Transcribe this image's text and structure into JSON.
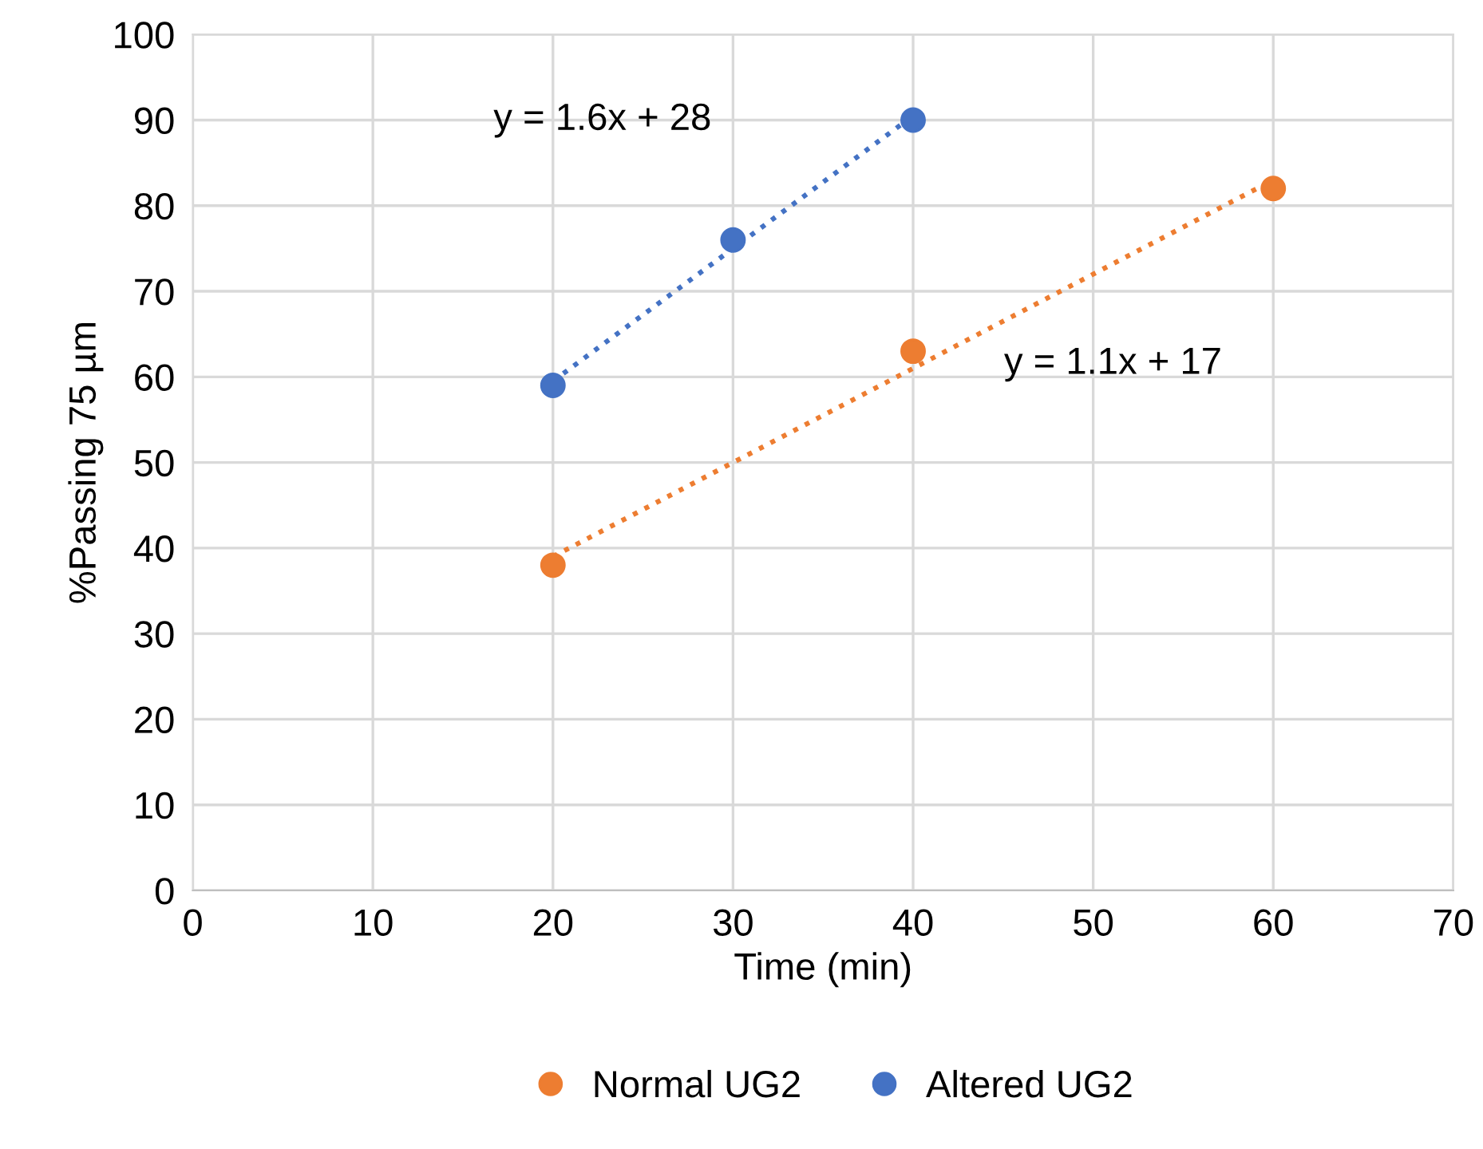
{
  "chart_data": {
    "type": "scatter",
    "xlabel": "Time (min)",
    "ylabel": "%Passing 75 µm",
    "xlim": [
      0,
      70
    ],
    "xticks": [
      0,
      10,
      20,
      30,
      40,
      50,
      60,
      70
    ],
    "ylim": [
      0,
      100
    ],
    "yticks": [
      0,
      10,
      20,
      30,
      40,
      50,
      60,
      70,
      80,
      90,
      100
    ],
    "grid": true,
    "legend": "bottom",
    "marker": "circle",
    "series": [
      {
        "name": "Normal UG2",
        "color": "#ed7d31",
        "x": [
          20,
          40,
          60
        ],
        "values": [
          38,
          63,
          82
        ]
      },
      {
        "name": "Altered UG2",
        "color": "#4472c4",
        "x": [
          20,
          30,
          40
        ],
        "values": [
          59,
          76,
          90
        ]
      },
      {
        "type": "line",
        "color": "#ed7d31",
        "line_style": "dotted",
        "marker": "none",
        "x": [
          20,
          60
        ],
        "values": [
          39,
          83
        ]
      },
      {
        "type": "line",
        "color": "#4472c4",
        "line_style": "dotted",
        "marker": "none",
        "x": [
          20,
          40
        ],
        "values": [
          59.5,
          90.5
        ]
      }
    ],
    "annotations": [
      "y = 1.6x + 28",
      "y = 1.1x + 17"
    ]
  }
}
